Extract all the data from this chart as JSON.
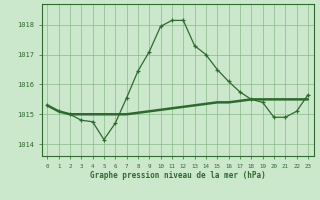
{
  "line1_x": [
    0,
    1,
    2,
    3,
    4,
    5,
    6,
    7,
    8,
    9,
    10,
    11,
    12,
    13,
    14,
    15,
    16,
    17,
    18,
    19,
    20,
    21,
    22,
    23
  ],
  "line1_y": [
    1015.3,
    1015.1,
    1015.0,
    1015.0,
    1015.0,
    1015.0,
    1015.0,
    1015.0,
    1015.05,
    1015.1,
    1015.15,
    1015.2,
    1015.25,
    1015.3,
    1015.35,
    1015.4,
    1015.4,
    1015.45,
    1015.5,
    1015.5,
    1015.5,
    1015.5,
    1015.5,
    1015.5
  ],
  "line2_x": [
    0,
    1,
    2,
    3,
    4,
    5,
    6,
    7,
    8,
    9,
    10,
    11,
    12,
    13,
    14,
    15,
    16,
    17,
    18,
    19,
    20,
    21,
    22,
    23
  ],
  "line2_y": [
    1015.3,
    1015.1,
    1015.0,
    1014.8,
    1014.75,
    1014.15,
    1014.7,
    1015.55,
    1016.45,
    1017.1,
    1017.95,
    1018.15,
    1018.15,
    1017.3,
    1017.0,
    1016.5,
    1016.1,
    1015.75,
    1015.5,
    1015.4,
    1014.9,
    1014.9,
    1015.1,
    1015.65
  ],
  "line_color": "#2d6a2d",
  "bg_color": "#cce8cc",
  "grid_color": "#88bb88",
  "xlabel": "Graphe pression niveau de la mer (hPa)",
  "xticks": [
    0,
    1,
    2,
    3,
    4,
    5,
    6,
    7,
    8,
    9,
    10,
    11,
    12,
    13,
    14,
    15,
    16,
    17,
    18,
    19,
    20,
    21,
    22,
    23
  ],
  "yticks": [
    1014,
    1015,
    1016,
    1017,
    1018
  ],
  "ylim": [
    1013.6,
    1018.7
  ],
  "xlim": [
    -0.5,
    23.5
  ]
}
